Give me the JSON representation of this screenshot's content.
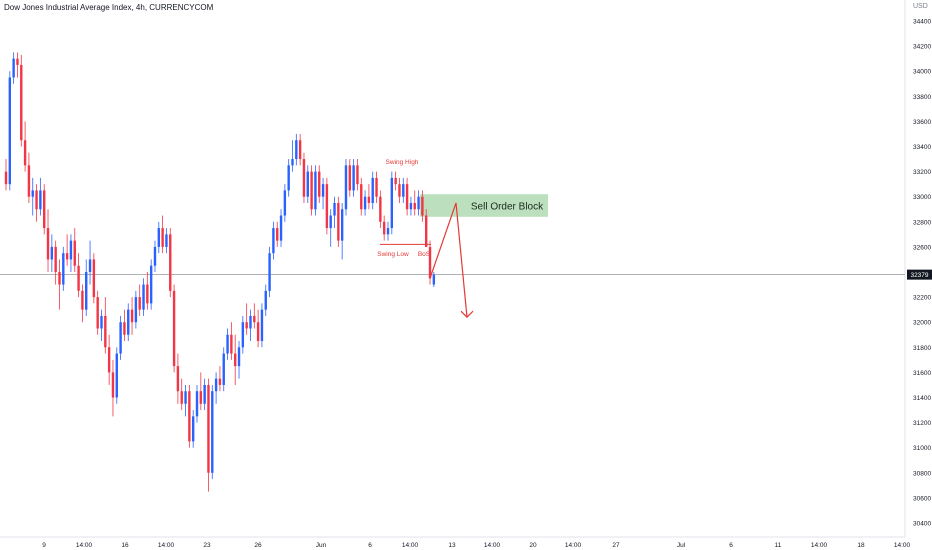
{
  "chart_data": {
    "type": "candlestick",
    "title": "Dow Jones Industrial Average Index, 4h, CURRENCYCOM",
    "currency": "USD",
    "ylim": [
      30400,
      34400
    ],
    "y_ticks": [
      34400,
      34200,
      34000,
      33800,
      33600,
      33400,
      33200,
      33000,
      32800,
      32600,
      32400,
      32200,
      32000,
      31800,
      31600,
      31400,
      31200,
      31000,
      30800,
      30600,
      30400
    ],
    "x_ticks": [
      "9",
      "14:00",
      "16",
      "14:00",
      "23",
      "26",
      "Jun",
      "6",
      "14:00",
      "13",
      "14:00",
      "20",
      "14:00",
      "27",
      "Jul",
      "6",
      "11",
      "14:00",
      "18",
      "14:00"
    ],
    "current_price": "32379",
    "colors": {
      "up": "#2962ff",
      "down": "#f23645",
      "zone": "#a5d6a7",
      "annotation": "#e53935",
      "current": "#131722"
    },
    "candles": [
      {
        "o": 33200,
        "h": 33300,
        "l": 33050,
        "c": 33100
      },
      {
        "o": 33100,
        "h": 34000,
        "l": 33050,
        "c": 33950
      },
      {
        "o": 33950,
        "h": 34150,
        "l": 33900,
        "c": 34100
      },
      {
        "o": 34100,
        "h": 34150,
        "l": 33950,
        "c": 34050
      },
      {
        "o": 34050,
        "h": 34130,
        "l": 33400,
        "c": 33450
      },
      {
        "o": 33450,
        "h": 33600,
        "l": 33200,
        "c": 33250
      },
      {
        "o": 33250,
        "h": 33350,
        "l": 32950,
        "c": 33000
      },
      {
        "o": 33000,
        "h": 33150,
        "l": 32850,
        "c": 33050
      },
      {
        "o": 33050,
        "h": 33100,
        "l": 32800,
        "c": 32900
      },
      {
        "o": 32900,
        "h": 33150,
        "l": 32850,
        "c": 33050
      },
      {
        "o": 33050,
        "h": 33100,
        "l": 32700,
        "c": 32750
      },
      {
        "o": 32750,
        "h": 32900,
        "l": 32400,
        "c": 32500
      },
      {
        "o": 32500,
        "h": 32700,
        "l": 32400,
        "c": 32600
      },
      {
        "o": 32600,
        "h": 32650,
        "l": 32300,
        "c": 32400
      },
      {
        "o": 32400,
        "h": 32500,
        "l": 32100,
        "c": 32300
      },
      {
        "o": 32300,
        "h": 32600,
        "l": 32250,
        "c": 32550
      },
      {
        "o": 32550,
        "h": 32700,
        "l": 32450,
        "c": 32500
      },
      {
        "o": 32500,
        "h": 32700,
        "l": 32400,
        "c": 32650
      },
      {
        "o": 32650,
        "h": 32750,
        "l": 32400,
        "c": 32450
      },
      {
        "o": 32450,
        "h": 32550,
        "l": 32200,
        "c": 32250
      },
      {
        "o": 32250,
        "h": 32300,
        "l": 32000,
        "c": 32100
      },
      {
        "o": 32100,
        "h": 32500,
        "l": 32050,
        "c": 32400
      },
      {
        "o": 32400,
        "h": 32650,
        "l": 32300,
        "c": 32500
      },
      {
        "o": 32500,
        "h": 32550,
        "l": 32150,
        "c": 32200
      },
      {
        "o": 32200,
        "h": 32250,
        "l": 31900,
        "c": 31950
      },
      {
        "o": 31950,
        "h": 32100,
        "l": 31850,
        "c": 32050
      },
      {
        "o": 32050,
        "h": 32200,
        "l": 31750,
        "c": 31800
      },
      {
        "o": 31800,
        "h": 31900,
        "l": 31500,
        "c": 31600
      },
      {
        "o": 31600,
        "h": 31700,
        "l": 31250,
        "c": 31400
      },
      {
        "o": 31400,
        "h": 31800,
        "l": 31350,
        "c": 31750
      },
      {
        "o": 31750,
        "h": 32050,
        "l": 31700,
        "c": 32000
      },
      {
        "o": 32000,
        "h": 32100,
        "l": 31850,
        "c": 31900
      },
      {
        "o": 31900,
        "h": 32150,
        "l": 31850,
        "c": 32100
      },
      {
        "o": 32100,
        "h": 32200,
        "l": 31900,
        "c": 32000
      },
      {
        "o": 32000,
        "h": 32250,
        "l": 31950,
        "c": 32200
      },
      {
        "o": 32200,
        "h": 32300,
        "l": 32050,
        "c": 32100
      },
      {
        "o": 32100,
        "h": 32350,
        "l": 32050,
        "c": 32300
      },
      {
        "o": 32300,
        "h": 32400,
        "l": 32100,
        "c": 32150
      },
      {
        "o": 32150,
        "h": 32500,
        "l": 32100,
        "c": 32450
      },
      {
        "o": 32450,
        "h": 32650,
        "l": 32400,
        "c": 32600
      },
      {
        "o": 32600,
        "h": 32800,
        "l": 32550,
        "c": 32750
      },
      {
        "o": 32750,
        "h": 32850,
        "l": 32550,
        "c": 32600
      },
      {
        "o": 32600,
        "h": 32750,
        "l": 32550,
        "c": 32700
      },
      {
        "o": 32700,
        "h": 32750,
        "l": 32200,
        "c": 32250
      },
      {
        "o": 32250,
        "h": 32300,
        "l": 31600,
        "c": 31650
      },
      {
        "o": 31650,
        "h": 31750,
        "l": 31350,
        "c": 31450
      },
      {
        "o": 31450,
        "h": 31550,
        "l": 31300,
        "c": 31350
      },
      {
        "o": 31350,
        "h": 31500,
        "l": 31250,
        "c": 31450
      },
      {
        "o": 31450,
        "h": 31500,
        "l": 31000,
        "c": 31050
      },
      {
        "o": 31050,
        "h": 31300,
        "l": 31000,
        "c": 31250
      },
      {
        "o": 31250,
        "h": 31500,
        "l": 31200,
        "c": 31450
      },
      {
        "o": 31450,
        "h": 31600,
        "l": 31300,
        "c": 31350
      },
      {
        "o": 31350,
        "h": 31550,
        "l": 31300,
        "c": 31500
      },
      {
        "o": 31500,
        "h": 31550,
        "l": 30650,
        "c": 30800
      },
      {
        "o": 30800,
        "h": 31500,
        "l": 30750,
        "c": 31450
      },
      {
        "o": 31450,
        "h": 31600,
        "l": 31350,
        "c": 31550
      },
      {
        "o": 31550,
        "h": 31650,
        "l": 31450,
        "c": 31500
      },
      {
        "o": 31500,
        "h": 31800,
        "l": 31450,
        "c": 31750
      },
      {
        "o": 31750,
        "h": 31950,
        "l": 31700,
        "c": 31900
      },
      {
        "o": 31900,
        "h": 32000,
        "l": 31700,
        "c": 31750
      },
      {
        "o": 31750,
        "h": 31900,
        "l": 31500,
        "c": 31650
      },
      {
        "o": 31650,
        "h": 31850,
        "l": 31550,
        "c": 31800
      },
      {
        "o": 31800,
        "h": 32050,
        "l": 31750,
        "c": 32000
      },
      {
        "o": 32000,
        "h": 32150,
        "l": 31900,
        "c": 31950
      },
      {
        "o": 31950,
        "h": 32100,
        "l": 31850,
        "c": 32050
      },
      {
        "o": 32050,
        "h": 32150,
        "l": 31950,
        "c": 32000
      },
      {
        "o": 32000,
        "h": 32100,
        "l": 31800,
        "c": 31850
      },
      {
        "o": 31850,
        "h": 32150,
        "l": 31800,
        "c": 32100
      },
      {
        "o": 32100,
        "h": 32300,
        "l": 32050,
        "c": 32250
      },
      {
        "o": 32250,
        "h": 32600,
        "l": 32200,
        "c": 32550
      },
      {
        "o": 32550,
        "h": 32800,
        "l": 32500,
        "c": 32750
      },
      {
        "o": 32750,
        "h": 32800,
        "l": 32600,
        "c": 32650
      },
      {
        "o": 32650,
        "h": 32900,
        "l": 32600,
        "c": 32850
      },
      {
        "o": 32850,
        "h": 33100,
        "l": 32800,
        "c": 33050
      },
      {
        "o": 33050,
        "h": 33300,
        "l": 33000,
        "c": 33250
      },
      {
        "o": 33250,
        "h": 33450,
        "l": 33200,
        "c": 33300
      },
      {
        "o": 33300,
        "h": 33500,
        "l": 33250,
        "c": 33450
      },
      {
        "o": 33450,
        "h": 33500,
        "l": 33250,
        "c": 33300
      },
      {
        "o": 33300,
        "h": 33350,
        "l": 32950,
        "c": 33000
      },
      {
        "o": 33000,
        "h": 33250,
        "l": 32950,
        "c": 33200
      },
      {
        "o": 33200,
        "h": 33250,
        "l": 32850,
        "c": 32900
      },
      {
        "o": 32900,
        "h": 33250,
        "l": 32850,
        "c": 33200
      },
      {
        "o": 33200,
        "h": 33250,
        "l": 32950,
        "c": 33000
      },
      {
        "o": 33000,
        "h": 33150,
        "l": 32900,
        "c": 33100
      },
      {
        "o": 33100,
        "h": 33150,
        "l": 32700,
        "c": 32750
      },
      {
        "o": 32750,
        "h": 32900,
        "l": 32600,
        "c": 32850
      },
      {
        "o": 32850,
        "h": 33000,
        "l": 32750,
        "c": 32950
      },
      {
        "o": 32950,
        "h": 33000,
        "l": 32600,
        "c": 32650
      },
      {
        "o": 32650,
        "h": 32950,
        "l": 32500,
        "c": 32900
      },
      {
        "o": 32900,
        "h": 33300,
        "l": 32850,
        "c": 33250
      },
      {
        "o": 33250,
        "h": 33300,
        "l": 33000,
        "c": 33050
      },
      {
        "o": 33050,
        "h": 33300,
        "l": 33000,
        "c": 33250
      },
      {
        "o": 33250,
        "h": 33300,
        "l": 33050,
        "c": 33100
      },
      {
        "o": 33100,
        "h": 33150,
        "l": 32850,
        "c": 32900
      },
      {
        "o": 32900,
        "h": 33050,
        "l": 32850,
        "c": 33000
      },
      {
        "o": 33000,
        "h": 33100,
        "l": 32900,
        "c": 32950
      },
      {
        "o": 32950,
        "h": 33200,
        "l": 32900,
        "c": 33150
      },
      {
        "o": 33150,
        "h": 33200,
        "l": 32950,
        "c": 33000
      },
      {
        "o": 33000,
        "h": 33050,
        "l": 32750,
        "c": 32800
      },
      {
        "o": 32800,
        "h": 32850,
        "l": 32650,
        "c": 32700
      },
      {
        "o": 32700,
        "h": 32800,
        "l": 32650,
        "c": 32750
      },
      {
        "o": 32750,
        "h": 33200,
        "l": 32700,
        "c": 33150
      },
      {
        "o": 33150,
        "h": 33200,
        "l": 33050,
        "c": 33100
      },
      {
        "o": 33100,
        "h": 33150,
        "l": 32950,
        "c": 33000
      },
      {
        "o": 33000,
        "h": 33150,
        "l": 32950,
        "c": 33100
      },
      {
        "o": 33100,
        "h": 33150,
        "l": 32850,
        "c": 32900
      },
      {
        "o": 32900,
        "h": 33000,
        "l": 32850,
        "c": 32950
      },
      {
        "o": 32950,
        "h": 33050,
        "l": 32850,
        "c": 32900
      },
      {
        "o": 32900,
        "h": 33050,
        "l": 32850,
        "c": 33000
      },
      {
        "o": 33000,
        "h": 33050,
        "l": 32800,
        "c": 32850
      },
      {
        "o": 32850,
        "h": 32900,
        "l": 32600,
        "c": 32600
      },
      {
        "o": 32600,
        "h": 32650,
        "l": 32300,
        "c": 32350
      },
      {
        "o": 32300,
        "h": 32400,
        "l": 32280,
        "c": 32379
      }
    ],
    "annotations": {
      "swing_high": "Swing High",
      "swing_low": "Swing Low",
      "bos": "BoS",
      "sell_order_block": "Sell Order Block"
    }
  }
}
